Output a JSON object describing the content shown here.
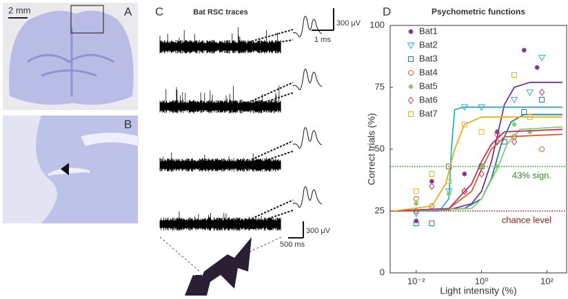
{
  "panels": {
    "A": {
      "label": "A",
      "scale_bar": "2 mm"
    },
    "B": {
      "label": "B"
    },
    "C": {
      "label": "C",
      "title": "Bat RSC traces",
      "top_scale_v": "300 μV",
      "top_scale_t": "1 ms",
      "bottom_scale_v": "300 μV",
      "bottom_scale_t": "500 ms"
    },
    "D": {
      "label": "D"
    }
  },
  "chart_data": {
    "type": "scatter",
    "title": "Psychometric functions",
    "x_label": "Light intensity (%)",
    "y_label": "Correct trials (%)",
    "log_x": true,
    "xlim": [
      0.0016,
      400
    ],
    "ylim": [
      0,
      100
    ],
    "xticks": [
      {
        "value": 0.01,
        "label": "10⁻²"
      },
      {
        "value": 1,
        "label": "10⁰"
      },
      {
        "value": 100,
        "label": "10²"
      }
    ],
    "yticks": [
      0,
      25,
      50,
      75,
      100
    ],
    "legend": "upper left",
    "hlines": [
      {
        "value": 43,
        "label": "43% sign.",
        "color": "#2e8b2e"
      },
      {
        "value": 25,
        "label": "chance level",
        "color": "#8b1a1a"
      }
    ],
    "series": [
      {
        "name": "Bat1",
        "color": "#7b2f8e",
        "marker": "star",
        "x": [
          0.01,
          0.03,
          0.3,
          1,
          3,
          20,
          50
        ],
        "values": [
          21,
          37,
          40,
          43,
          57,
          90,
          83
        ],
        "fit": {
          "x": [
            0.002,
            0.1,
            0.5,
            1,
            2,
            3,
            5,
            10,
            30,
            300
          ],
          "values": [
            25,
            25.5,
            28,
            33,
            45,
            55,
            68,
            75,
            77,
            77
          ]
        }
      },
      {
        "name": "Bat2",
        "color": "#2ab0c8",
        "marker": "triangle-down",
        "x": [
          0.01,
          0.1,
          0.3,
          1,
          10,
          30,
          70
        ],
        "values": [
          24,
          33,
          67,
          67,
          70,
          73,
          87
        ],
        "fit": {
          "x": [
            0.002,
            0.05,
            0.1,
            0.12,
            0.15,
            0.3,
            300
          ],
          "values": [
            25,
            25,
            30,
            50,
            66,
            67,
            67
          ]
        }
      },
      {
        "name": "Bat3",
        "color": "#1f7a8c",
        "marker": "square",
        "x": [
          0.01,
          0.03,
          0.1,
          1,
          5,
          20,
          70
        ],
        "values": [
          20,
          20,
          43,
          43,
          53,
          65,
          70
        ],
        "fit": {
          "x": [
            0.002,
            0.3,
            1,
            2,
            4,
            8,
            20,
            300
          ],
          "values": [
            25,
            26,
            30,
            38,
            52,
            61,
            64,
            64
          ]
        }
      },
      {
        "name": "Bat4",
        "color": "#e05a2b",
        "marker": "circle",
        "x": [
          0.01,
          0.03,
          0.3,
          1,
          3,
          10,
          70
        ],
        "values": [
          30,
          27,
          33,
          43,
          56,
          55,
          50
        ],
        "fit": {
          "x": [
            0.002,
            0.1,
            0.5,
            1,
            2,
            5,
            300
          ],
          "values": [
            25,
            26,
            33,
            42,
            50,
            55,
            56
          ]
        }
      },
      {
        "name": "Bat5",
        "color": "#7ccf6a",
        "marker": "star",
        "x": [
          0.01,
          0.1,
          1,
          3,
          10,
          30
        ],
        "values": [
          28,
          32,
          43,
          43,
          60,
          57
        ],
        "fit": {
          "x": [
            0.002,
            0.5,
            1,
            3,
            6,
            15,
            300
          ],
          "values": [
            25,
            26,
            30,
            42,
            52,
            58,
            59
          ]
        }
      },
      {
        "name": "Bat6",
        "color": "#c0305a",
        "marker": "diamond",
        "x": [
          0.01,
          0.03,
          0.3,
          1,
          3,
          10,
          70
        ],
        "values": [
          25,
          35,
          33,
          40,
          53,
          53,
          73
        ],
        "fit": {
          "x": [
            0.002,
            0.1,
            0.5,
            1,
            2,
            5,
            300
          ],
          "values": [
            25,
            26,
            36,
            45,
            52,
            57,
            58
          ]
        }
      },
      {
        "name": "Bat7",
        "color": "#e8b020",
        "marker": "square",
        "x": [
          0.01,
          0.03,
          0.1,
          0.3,
          1,
          10,
          30
        ],
        "values": [
          33,
          40,
          37,
          60,
          57,
          80,
          63
        ],
        "fit": {
          "x": [
            0.002,
            0.03,
            0.08,
            0.15,
            0.3,
            1,
            300
          ],
          "values": [
            25,
            27,
            36,
            50,
            60,
            63,
            63
          ]
        }
      }
    ]
  }
}
